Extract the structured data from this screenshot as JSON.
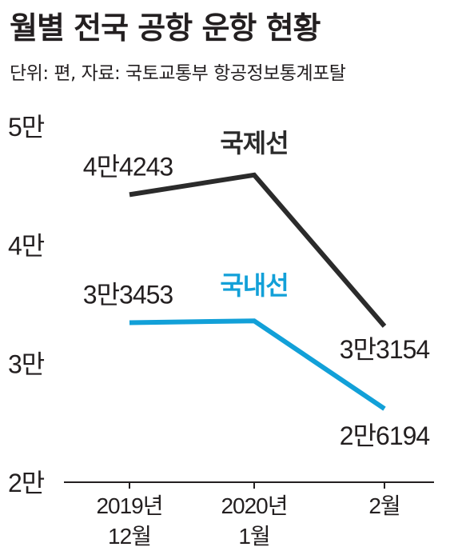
{
  "title": "월별 전국 공항 운항 현황",
  "subtitle": "단위: 편, 자료: 국토교통부 항공정보통계포탈",
  "colors": {
    "international": "#2b2b2b",
    "domestic": "#12a0d8",
    "axis": "#231f20"
  },
  "chart_data": {
    "type": "line",
    "categories": [
      [
        "2019년",
        "12월"
      ],
      [
        "2020년",
        "1월"
      ],
      [
        "2월"
      ]
    ],
    "ylim": [
      20000,
      50000
    ],
    "yticks": [
      {
        "value": 50000,
        "label": "5만"
      },
      {
        "value": 40000,
        "label": "4만"
      },
      {
        "value": 30000,
        "label": "3만"
      },
      {
        "value": 20000,
        "label": "2만"
      }
    ],
    "series": [
      {
        "name": "국제선",
        "color": "#2b2b2b",
        "values": [
          44243,
          45900,
          33154
        ],
        "data_labels": [
          "4만4243",
          "",
          "3만3154"
        ]
      },
      {
        "name": "국내선",
        "color": "#12a0d8",
        "values": [
          33453,
          33600,
          26194
        ],
        "data_labels": [
          "3만3453",
          "",
          "2만6194"
        ]
      }
    ],
    "grid": false
  }
}
